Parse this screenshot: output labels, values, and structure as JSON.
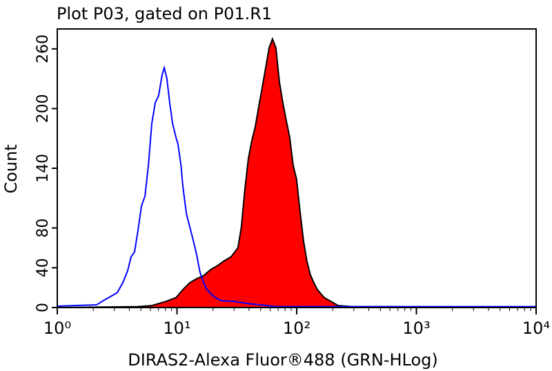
{
  "chart_data": {
    "type": "histogram-overlay",
    "title": "Plot P03, gated on P01.R1",
    "x_label": "DIRAS2-Alexa Fluor®488 (GRN-HLog)",
    "y_label": "Count",
    "x_log": true,
    "xlim": [
      1,
      10000
    ],
    "xticks": [
      {
        "value": 1,
        "label": "10⁰"
      },
      {
        "value": 10,
        "label": "10¹"
      },
      {
        "value": 100,
        "label": "10²"
      },
      {
        "value": 1000,
        "label": "10³"
      },
      {
        "value": 10000,
        "label": "10⁴"
      }
    ],
    "ylim": [
      0,
      280
    ],
    "yticks": [
      0,
      40,
      80,
      140,
      200,
      260
    ],
    "series": [
      {
        "color": "#ff0000",
        "outline": "#000000",
        "filled": true,
        "x": [
          1,
          4.72,
          6.16,
          8.03,
          9.8,
          11.2,
          12.8,
          14.6,
          16.7,
          19.0,
          21.7,
          24.8,
          28.3,
          32.3,
          34.5,
          36.9,
          39.5,
          42.2,
          45.1,
          48.2,
          51.5,
          55.0,
          58.8,
          62.8,
          67.1,
          71.7,
          76.6,
          81.8,
          87.4,
          93.4,
          99.8,
          107,
          114,
          122,
          130,
          139,
          149,
          170,
          194,
          222,
          290,
          10000
        ],
        "values": [
          0,
          1,
          2,
          6,
          10,
          18,
          25,
          29,
          32,
          38,
          42,
          47,
          51,
          60,
          81,
          119,
          150,
          168,
          182,
          202,
          221,
          241,
          261,
          270,
          261,
          227,
          206,
          188,
          171,
          143,
          129,
          95,
          67,
          46,
          33,
          25,
          18,
          10,
          6,
          2,
          1,
          0
        ]
      },
      {
        "color": "#0000ff",
        "filled": false,
        "x": [
          1,
          2.13,
          2.43,
          2.78,
          3.17,
          3.53,
          3.87,
          4.14,
          4.42,
          4.72,
          5.05,
          5.4,
          5.77,
          6.16,
          6.58,
          7.03,
          7.52,
          7.82,
          8.24,
          8.69,
          9.18,
          9.8,
          10.2,
          10.8,
          11.2,
          12.0,
          12.8,
          13.7,
          14.6,
          15.6,
          16.7,
          17.8,
          20.3,
          23.2,
          30.3,
          39.5,
          67.1,
          253,
          10000
        ],
        "values": [
          1.4,
          2.8,
          7,
          11,
          15,
          25,
          37,
          51,
          56,
          77,
          102,
          112,
          143,
          185,
          206,
          213,
          234,
          241,
          230,
          206,
          185,
          171,
          164,
          143,
          122,
          94,
          81,
          67,
          53,
          35,
          25,
          18,
          11,
          7,
          6,
          4,
          1,
          1,
          1
        ]
      }
    ]
  }
}
